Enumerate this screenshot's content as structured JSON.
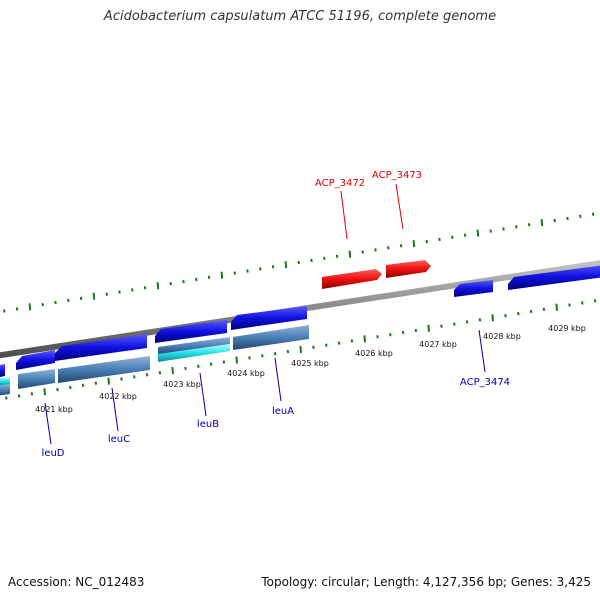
{
  "title": "Acidobacterium capsulatum ATCC 51196, complete genome",
  "footer": {
    "accession": "Accession: NC_012483",
    "summary": "Topology: circular; Length: 4,127,356 bp; Genes: 3,425"
  },
  "axis": {
    "tick_labels": [
      "4021 kbp",
      "4022 kbp",
      "4023 kbp",
      "4024 kbp",
      "4025 kbp",
      "4026 kbp",
      "4027 kbp",
      "4028 kbp",
      "4029 kbp"
    ]
  },
  "genes": [
    {
      "label": "ACP_3472",
      "color": "#dd0000"
    },
    {
      "label": "ACP_3473",
      "color": "#dd0000"
    },
    {
      "label": "ACP_3474",
      "color": "#0000aa"
    },
    {
      "label": "leuA",
      "color": "#0000aa"
    },
    {
      "label": "leuB",
      "color": "#0000aa"
    },
    {
      "label": "leuC",
      "color": "#0000aa"
    },
    {
      "label": "leuD",
      "color": "#0000aa"
    }
  ],
  "colors": {
    "forward_feature": "#ee1111",
    "reverse_feature": "#1111dd",
    "cds_row": "#4a7fb5",
    "cyan_row": "#22e0e8",
    "backbone": "#8a8a8a",
    "ticks": "#1a7a1a"
  }
}
